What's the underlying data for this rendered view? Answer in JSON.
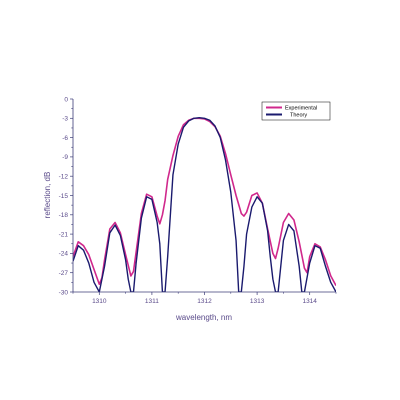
{
  "chart_data": {
    "type": "line",
    "title": "",
    "xlabel": "wavelength, nm",
    "ylabel": "reflection, dB",
    "xlim": [
      1309.5,
      1314.5
    ],
    "ylim": [
      -30,
      0
    ],
    "x_ticks": [
      1310,
      1311,
      1312,
      1313,
      1314
    ],
    "y_ticks": [
      0,
      -3,
      -6,
      -9,
      -12,
      -15,
      -18,
      -21,
      -24,
      -27,
      -30
    ],
    "x_tick_labels": [
      "1310",
      "1311",
      "1312",
      "1313",
      "1314"
    ],
    "y_tick_labels": [
      "0",
      "-3",
      "-6",
      "-9",
      "-12",
      "-15",
      "-18",
      "-21",
      "-24",
      "-27",
      "-30"
    ],
    "grid": false,
    "legend_position": "top-right",
    "series": [
      {
        "name": "Experimental",
        "color": "#d0288c",
        "x": [
          1309.5,
          1309.6,
          1309.7,
          1309.8,
          1309.9,
          1310.0,
          1310.05,
          1310.1,
          1310.2,
          1310.3,
          1310.4,
          1310.5,
          1310.6,
          1310.65,
          1310.7,
          1310.8,
          1310.9,
          1311.0,
          1311.1,
          1311.15,
          1311.2,
          1311.25,
          1311.3,
          1311.4,
          1311.5,
          1311.6,
          1311.7,
          1311.8,
          1311.9,
          1312.0,
          1312.1,
          1312.2,
          1312.3,
          1312.4,
          1312.5,
          1312.6,
          1312.7,
          1312.75,
          1312.8,
          1312.9,
          1313.0,
          1313.1,
          1313.2,
          1313.3,
          1313.35,
          1313.4,
          1313.5,
          1313.6,
          1313.7,
          1313.8,
          1313.9,
          1313.95,
          1314.0,
          1314.1,
          1314.2,
          1314.3,
          1314.4,
          1314.5
        ],
        "y": [
          -24.5,
          -22.2,
          -22.8,
          -24.2,
          -26.5,
          -28.8,
          -27.8,
          -25.0,
          -20.2,
          -19.2,
          -20.8,
          -24.2,
          -27.5,
          -26.8,
          -23.8,
          -17.8,
          -14.8,
          -15.2,
          -18.2,
          -19.4,
          -18.0,
          -15.8,
          -12.5,
          -8.8,
          -5.8,
          -4.0,
          -3.3,
          -3.0,
          -3.0,
          -3.1,
          -3.5,
          -4.3,
          -5.8,
          -8.5,
          -11.8,
          -15.0,
          -17.8,
          -18.2,
          -17.6,
          -15.0,
          -14.6,
          -16.2,
          -20.2,
          -24.0,
          -24.8,
          -23.2,
          -19.2,
          -17.8,
          -18.8,
          -22.2,
          -26.3,
          -27.0,
          -24.5,
          -22.5,
          -23.0,
          -25.0,
          -27.5,
          -29.0
        ]
      },
      {
        "name": "Theory",
        "color": "#1a1a6e",
        "x": [
          1309.5,
          1309.6,
          1309.7,
          1309.8,
          1309.9,
          1310.0,
          1310.1,
          1310.2,
          1310.3,
          1310.4,
          1310.5,
          1310.55,
          1310.6,
          1310.65,
          1310.7,
          1310.8,
          1310.9,
          1311.0,
          1311.1,
          1311.15,
          1311.2,
          1311.25,
          1311.3,
          1311.4,
          1311.5,
          1311.6,
          1311.7,
          1311.8,
          1311.9,
          1312.0,
          1312.1,
          1312.2,
          1312.3,
          1312.4,
          1312.5,
          1312.6,
          1312.65,
          1312.7,
          1312.75,
          1312.8,
          1312.9,
          1313.0,
          1313.1,
          1313.2,
          1313.25,
          1313.3,
          1313.35,
          1313.4,
          1313.5,
          1313.6,
          1313.7,
          1313.8,
          1313.85,
          1313.9,
          1314.0,
          1314.1,
          1314.2,
          1314.3,
          1314.4,
          1314.5
        ],
        "y": [
          -25.2,
          -22.8,
          -23.5,
          -25.5,
          -28.5,
          -30.0,
          -26.0,
          -20.8,
          -19.6,
          -21.2,
          -25.0,
          -28.0,
          -30.0,
          -30.0,
          -25.5,
          -18.5,
          -15.2,
          -15.6,
          -19.2,
          -22.5,
          -30.0,
          -30.0,
          -24.5,
          -11.8,
          -7.0,
          -4.4,
          -3.4,
          -3.0,
          -2.9,
          -3.0,
          -3.3,
          -4.2,
          -6.0,
          -9.5,
          -14.5,
          -22.0,
          -30.0,
          -30.0,
          -26.0,
          -21.0,
          -16.8,
          -15.2,
          -16.2,
          -20.5,
          -24.5,
          -28.0,
          -30.0,
          -30.0,
          -22.0,
          -19.5,
          -20.5,
          -26.0,
          -30.0,
          -30.0,
          -25.5,
          -22.8,
          -23.2,
          -26.0,
          -28.5,
          -30.0
        ]
      }
    ]
  }
}
